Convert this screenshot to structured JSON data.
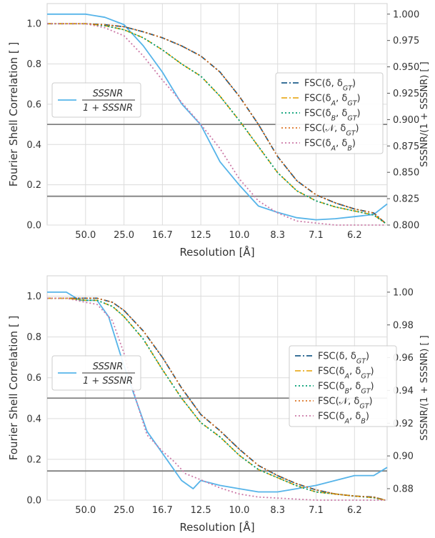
{
  "chart_data": [
    {
      "type": "line",
      "xlabel": "Resolution [Å]",
      "ylabel": "Fourier Shell Correlation [ ]",
      "y2label": "SSSNR/(1 + SSSNR) [ ]",
      "x_ticks": [
        "50.0",
        "25.0",
        "16.7",
        "12.5",
        "10.0",
        "8.3",
        "7.1",
        "6.2"
      ],
      "x_tick_positions": [
        1,
        2,
        3,
        4,
        5,
        6,
        7,
        8
      ],
      "xlim": [
        0,
        8.85
      ],
      "ylim": [
        0,
        1.1
      ],
      "y_ticks": [
        "0.0",
        "0.2",
        "0.4",
        "0.6",
        "0.8",
        "1.0"
      ],
      "y_tick_values": [
        0,
        0.2,
        0.4,
        0.6,
        0.8,
        1.0
      ],
      "y2lim": [
        0.8,
        1.01
      ],
      "y2_ticks": [
        "0.800",
        "0.825",
        "0.850",
        "0.875",
        "0.900",
        "0.925",
        "0.950",
        "0.975",
        "1.000"
      ],
      "y2_tick_values": [
        0.8,
        0.825,
        0.85,
        0.875,
        0.9,
        0.925,
        0.95,
        0.975,
        1.0
      ],
      "hlines": [
        0.5,
        0.143
      ],
      "hline_color": "#808080",
      "grid": true,
      "legend_right": {
        "position": "center-right",
        "entries": [
          "FSC(δ, δ_GT)",
          "FSC(δ_A, δ_GT)",
          "FSC(δ_B, δ_GT)",
          "FSC(𝒩, δ_GT)",
          "FSC(δ_A, δ_B)"
        ]
      },
      "legend_left": {
        "position": "center-left",
        "numerator": "SSSNR",
        "denominator": "1 + SSSNR"
      },
      "series": [
        {
          "name": "FSC(δ, δ_GT)",
          "axis": "left",
          "color": "#1f5f8b",
          "dash": "8,3,2,3",
          "width": 1.8,
          "x": [
            0,
            0.5,
            1,
            1.5,
            2,
            2.5,
            3,
            3.5,
            4,
            4.5,
            5,
            5.5,
            6,
            6.5,
            7,
            7.5,
            8,
            8.5,
            8.8
          ],
          "y": [
            1.0,
            1.0,
            1.0,
            0.995,
            0.985,
            0.96,
            0.93,
            0.89,
            0.84,
            0.76,
            0.64,
            0.5,
            0.34,
            0.22,
            0.15,
            0.11,
            0.08,
            0.06,
            0.01
          ]
        },
        {
          "name": "FSC(δ_A, δ_GT)",
          "axis": "left",
          "color": "#e69f00",
          "dash": "8,3,2,3",
          "width": 1.6,
          "x": [
            0,
            0.5,
            1,
            1.5,
            2,
            2.5,
            3,
            3.5,
            4,
            4.5,
            5,
            5.5,
            6,
            6.5,
            7,
            7.5,
            8,
            8.5,
            8.8
          ],
          "y": [
            1.0,
            1.0,
            1.0,
            0.99,
            0.97,
            0.93,
            0.87,
            0.8,
            0.74,
            0.64,
            0.52,
            0.39,
            0.26,
            0.17,
            0.12,
            0.09,
            0.07,
            0.05,
            0.01
          ]
        },
        {
          "name": "FSC(δ_B, δ_GT)",
          "axis": "left",
          "color": "#009e73",
          "dash": "2,3",
          "width": 1.8,
          "x": [
            0,
            0.5,
            1,
            1.5,
            2,
            2.5,
            3,
            3.5,
            4,
            4.5,
            5,
            5.5,
            6,
            6.5,
            7,
            7.5,
            8,
            8.5,
            8.8
          ],
          "y": [
            1.0,
            1.0,
            1.0,
            0.99,
            0.97,
            0.93,
            0.87,
            0.8,
            0.74,
            0.64,
            0.52,
            0.39,
            0.26,
            0.17,
            0.12,
            0.09,
            0.07,
            0.05,
            0.01
          ]
        },
        {
          "name": "FSC(𝒩, δ_GT)",
          "axis": "left",
          "color": "#d55e00",
          "dash": "2,3",
          "width": 1.6,
          "x": [
            0,
            0.5,
            1,
            1.5,
            2,
            2.5,
            3,
            3.5,
            4,
            4.5,
            5,
            5.5,
            6,
            6.5,
            7,
            7.5,
            8,
            8.5,
            8.8
          ],
          "y": [
            1.0,
            1.0,
            1.0,
            0.995,
            0.985,
            0.96,
            0.93,
            0.89,
            0.84,
            0.76,
            0.64,
            0.5,
            0.34,
            0.22,
            0.15,
            0.11,
            0.08,
            0.06,
            0.01
          ]
        },
        {
          "name": "FSC(δ_A, δ_B)",
          "axis": "left",
          "color": "#cc79a7",
          "dash": "2,3",
          "width": 1.8,
          "x": [
            0,
            0.5,
            1,
            1.5,
            2,
            2.5,
            3,
            3.5,
            4,
            4.5,
            5,
            5.5,
            6,
            6.5,
            7,
            7.5,
            8,
            8.5,
            8.8
          ],
          "y": [
            1.0,
            1.0,
            1.0,
            0.98,
            0.94,
            0.84,
            0.72,
            0.61,
            0.5,
            0.38,
            0.23,
            0.12,
            0.06,
            0.02,
            0.01,
            0.0,
            0.0,
            0.0,
            0.0
          ]
        },
        {
          "name": "SSSNR/(1 + SSSNR)",
          "axis": "right",
          "color": "#56b4e9",
          "dash": "",
          "width": 1.8,
          "x": [
            0,
            0.5,
            1,
            1.5,
            2,
            2.5,
            3,
            3.5,
            4,
            4.5,
            5,
            5.5,
            6,
            6.5,
            7,
            7.5,
            8,
            8.5,
            8.85
          ],
          "y": [
            1.0,
            1.0,
            1.0,
            0.997,
            0.99,
            0.97,
            0.945,
            0.915,
            0.895,
            0.86,
            0.838,
            0.818,
            0.812,
            0.807,
            0.805,
            0.806,
            0.808,
            0.81,
            0.82
          ]
        }
      ]
    },
    {
      "type": "line",
      "xlabel": "Resolution [Å]",
      "ylabel": "Fourier Shell Correlation [ ]",
      "y2label": "SSSNR/(1 + SSSNR) [ ]",
      "x_ticks": [
        "50.0",
        "25.0",
        "16.7",
        "12.5",
        "10.0",
        "8.3",
        "7.1",
        "6.2"
      ],
      "x_tick_positions": [
        1,
        2,
        3,
        4,
        5,
        6,
        7,
        8
      ],
      "xlim": [
        0,
        8.85
      ],
      "ylim": [
        0,
        1.1
      ],
      "y_ticks": [
        "0.0",
        "0.2",
        "0.4",
        "0.6",
        "0.8",
        "1.0"
      ],
      "y_tick_values": [
        0,
        0.2,
        0.4,
        0.6,
        0.8,
        1.0
      ],
      "y2lim": [
        0.873,
        1.01
      ],
      "y2_ticks": [
        "0.88",
        "0.90",
        "0.92",
        "0.94",
        "0.96",
        "0.98",
        "1.00"
      ],
      "y2_tick_values": [
        0.88,
        0.9,
        0.92,
        0.94,
        0.96,
        0.98,
        1.0
      ],
      "hlines": [
        0.5,
        0.143
      ],
      "hline_color": "#808080",
      "grid": true,
      "legend_right": {
        "position": "center-right",
        "entries": [
          "FSC(δ, δ_GT)",
          "FSC(δ_A, δ_GT)",
          "FSC(δ_B, δ_GT)",
          "FSC(𝒩, δ_GT)",
          "FSC(δ_A, δ_B)"
        ]
      },
      "legend_left": {
        "position": "center-left",
        "numerator": "SSSNR",
        "denominator": "1 + SSSNR"
      },
      "series": [
        {
          "name": "FSC(δ, δ_GT)",
          "axis": "left",
          "color": "#1f5f8b",
          "dash": "8,3,2,3",
          "width": 1.8,
          "x": [
            0,
            0.5,
            1,
            1.3,
            1.7,
            2,
            2.5,
            3,
            3.5,
            4,
            4.5,
            5,
            5.5,
            6,
            6.5,
            7,
            7.5,
            8,
            8.5,
            8.8
          ],
          "y": [
            0.99,
            0.99,
            0.99,
            0.99,
            0.97,
            0.93,
            0.83,
            0.7,
            0.55,
            0.42,
            0.34,
            0.25,
            0.17,
            0.12,
            0.08,
            0.05,
            0.03,
            0.02,
            0.015,
            0.0
          ]
        },
        {
          "name": "FSC(δ_A, δ_GT)",
          "axis": "left",
          "color": "#e69f00",
          "dash": "8,3,2,3",
          "width": 1.6,
          "x": [
            0,
            0.5,
            1,
            1.3,
            1.7,
            2,
            2.5,
            3,
            3.5,
            4,
            4.5,
            5,
            5.5,
            6,
            6.5,
            7,
            7.5,
            8,
            8.5,
            8.8
          ],
          "y": [
            0.99,
            0.99,
            0.98,
            0.98,
            0.95,
            0.9,
            0.79,
            0.64,
            0.5,
            0.38,
            0.31,
            0.22,
            0.15,
            0.11,
            0.07,
            0.04,
            0.03,
            0.02,
            0.012,
            0.0
          ]
        },
        {
          "name": "FSC(δ_B, δ_GT)",
          "axis": "left",
          "color": "#009e73",
          "dash": "2,3",
          "width": 1.8,
          "x": [
            0,
            0.5,
            1,
            1.3,
            1.7,
            2,
            2.5,
            3,
            3.5,
            4,
            4.5,
            5,
            5.5,
            6,
            6.5,
            7,
            7.5,
            8,
            8.5,
            8.8
          ],
          "y": [
            0.99,
            0.99,
            0.98,
            0.98,
            0.95,
            0.9,
            0.79,
            0.64,
            0.5,
            0.38,
            0.31,
            0.22,
            0.15,
            0.11,
            0.07,
            0.04,
            0.03,
            0.02,
            0.012,
            0.0
          ]
        },
        {
          "name": "FSC(𝒩, δ_GT)",
          "axis": "left",
          "color": "#d55e00",
          "dash": "2,3",
          "width": 1.6,
          "x": [
            0,
            0.5,
            1,
            1.3,
            1.7,
            2,
            2.5,
            3,
            3.5,
            4,
            4.5,
            5,
            5.5,
            6,
            6.5,
            7,
            7.5,
            8,
            8.5,
            8.8
          ],
          "y": [
            0.99,
            0.99,
            0.99,
            0.99,
            0.97,
            0.93,
            0.83,
            0.7,
            0.55,
            0.42,
            0.34,
            0.25,
            0.17,
            0.12,
            0.08,
            0.05,
            0.03,
            0.02,
            0.015,
            0.0
          ]
        },
        {
          "name": "FSC(δ_A, δ_B)",
          "axis": "left",
          "color": "#cc79a7",
          "dash": "2,3",
          "width": 1.8,
          "x": [
            0,
            0.5,
            1,
            1.3,
            1.7,
            2,
            2.3,
            2.6,
            3,
            3.3,
            3.6,
            4,
            4.5,
            5,
            5.5,
            6,
            6.5,
            7,
            7.5,
            8,
            8.5,
            8.8
          ],
          "y": [
            0.99,
            0.99,
            0.97,
            0.96,
            0.88,
            0.72,
            0.5,
            0.32,
            0.24,
            0.19,
            0.13,
            0.1,
            0.06,
            0.03,
            0.015,
            0.01,
            0.005,
            0.0,
            0.0,
            0.0,
            0.0,
            0.0
          ]
        },
        {
          "name": "SSSNR/(1 + SSSNR)",
          "axis": "right",
          "color": "#56b4e9",
          "dash": "",
          "width": 1.8,
          "x": [
            0,
            0.5,
            0.85,
            1,
            1.3,
            1.6,
            2,
            2.3,
            2.6,
            2.9,
            3.2,
            3.5,
            3.8,
            4,
            4.5,
            5,
            5.5,
            6,
            6.5,
            7,
            7.5,
            8,
            8.5,
            8.85
          ],
          "y": [
            1.0,
            1.0,
            0.995,
            0.995,
            0.995,
            0.985,
            0.955,
            0.935,
            0.915,
            0.905,
            0.895,
            0.885,
            0.88,
            0.885,
            0.882,
            0.88,
            0.878,
            0.878,
            0.88,
            0.882,
            0.885,
            0.888,
            0.888,
            0.893
          ]
        }
      ]
    }
  ]
}
